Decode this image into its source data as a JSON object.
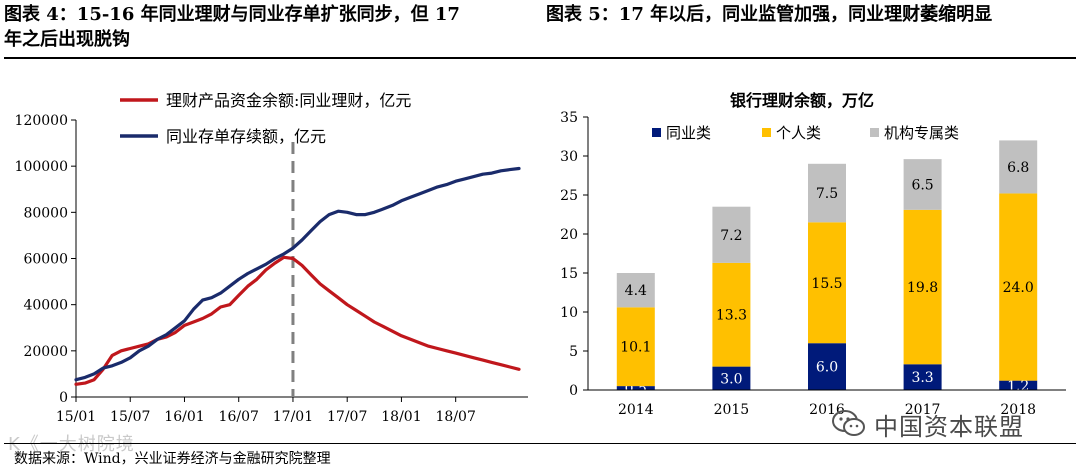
{
  "header": {
    "title_left": "图表 4：15-16 年同业理财与同业存单扩张同步，但 17",
    "title_right": "图表 5：17 年以后，同业监管加强，同业理财萎缩明显",
    "title_line2": "年之后出现脱钩"
  },
  "footer": {
    "source": "数据来源：Wind，兴业证券经济与金融研究院整理",
    "watermark_left": "K《一大树院境",
    "watermark_right": "中国资本联盟",
    "watermark_icon": "wechat-icon"
  },
  "colors": {
    "red": "#c0171c",
    "navy": "#1a2b6b",
    "bar_navy": "#001a7a",
    "bar_yellow": "#ffc000",
    "bar_gray": "#c0c0c0",
    "dashed": "#808080"
  },
  "chart_data": [
    {
      "type": "line",
      "title": "",
      "xlabel": "",
      "ylabel": "",
      "ylim": [
        0,
        120000
      ],
      "yticks": [
        "0",
        "20000",
        "40000",
        "60000",
        "80000",
        "100000",
        "120000"
      ],
      "xticks": [
        "15/01",
        "15/07",
        "16/01",
        "16/07",
        "17/01",
        "17/07",
        "18/01",
        "18/07"
      ],
      "xtick_months": [
        0,
        6,
        12,
        18,
        24,
        30,
        36,
        42
      ],
      "x_range_months": [
        0,
        50
      ],
      "marker_line_month": 24,
      "legend_position": "top-left",
      "series": [
        {
          "name": "理财产品资金余额:同业理财，亿元",
          "color": "#c0171c",
          "points": [
            [
              0,
              5500
            ],
            [
              1,
              6000
            ],
            [
              2,
              7500
            ],
            [
              3,
              12000
            ],
            [
              4,
              18000
            ],
            [
              5,
              20000
            ],
            [
              6,
              21000
            ],
            [
              7,
              22000
            ],
            [
              8,
              23000
            ],
            [
              9,
              25000
            ],
            [
              10,
              26000
            ],
            [
              11,
              28000
            ],
            [
              12,
              31000
            ],
            [
              13,
              32500
            ],
            [
              14,
              34000
            ],
            [
              15,
              36000
            ],
            [
              16,
              39000
            ],
            [
              17,
              40000
            ],
            [
              18,
              44000
            ],
            [
              19,
              48000
            ],
            [
              20,
              51000
            ],
            [
              21,
              55000
            ],
            [
              22,
              58000
            ],
            [
              23,
              60500
            ],
            [
              24,
              60000
            ],
            [
              25,
              57000
            ],
            [
              26,
              53000
            ],
            [
              27,
              49000
            ],
            [
              28,
              46000
            ],
            [
              29,
              43000
            ],
            [
              30,
              40000
            ],
            [
              31,
              37500
            ],
            [
              32,
              35000
            ],
            [
              33,
              32500
            ],
            [
              34,
              30500
            ],
            [
              35,
              28500
            ],
            [
              36,
              26500
            ],
            [
              37,
              25000
            ],
            [
              38,
              23500
            ],
            [
              39,
              22000
            ],
            [
              40,
              21000
            ],
            [
              41,
              20000
            ],
            [
              42,
              19000
            ],
            [
              43,
              18000
            ],
            [
              44,
              17000
            ],
            [
              45,
              16000
            ],
            [
              46,
              15000
            ],
            [
              47,
              14000
            ],
            [
              48,
              13000
            ],
            [
              49,
              12000
            ]
          ]
        },
        {
          "name": "同业存单存续额，亿元",
          "color": "#1a2b6b",
          "points": [
            [
              0,
              7500
            ],
            [
              1,
              8500
            ],
            [
              2,
              10000
            ],
            [
              3,
              12500
            ],
            [
              4,
              13500
            ],
            [
              5,
              15000
            ],
            [
              6,
              17000
            ],
            [
              7,
              20000
            ],
            [
              8,
              22000
            ],
            [
              9,
              25000
            ],
            [
              10,
              27000
            ],
            [
              11,
              30000
            ],
            [
              12,
              33000
            ],
            [
              13,
              38000
            ],
            [
              14,
              42000
            ],
            [
              15,
              43000
            ],
            [
              16,
              45000
            ],
            [
              17,
              48000
            ],
            [
              18,
              51000
            ],
            [
              19,
              53500
            ],
            [
              20,
              55500
            ],
            [
              21,
              57500
            ],
            [
              22,
              60000
            ],
            [
              23,
              62000
            ],
            [
              24,
              64500
            ],
            [
              25,
              68000
            ],
            [
              26,
              72000
            ],
            [
              27,
              76000
            ],
            [
              28,
              79000
            ],
            [
              29,
              80500
            ],
            [
              30,
              80000
            ],
            [
              31,
              79000
            ],
            [
              32,
              79000
            ],
            [
              33,
              80000
            ],
            [
              34,
              81500
            ],
            [
              35,
              83000
            ],
            [
              36,
              85000
            ],
            [
              37,
              86500
            ],
            [
              38,
              88000
            ],
            [
              39,
              89500
            ],
            [
              40,
              91000
            ],
            [
              41,
              92000
            ],
            [
              42,
              93500
            ],
            [
              43,
              94500
            ],
            [
              44,
              95500
            ],
            [
              45,
              96500
            ],
            [
              46,
              97000
            ],
            [
              47,
              98000
            ],
            [
              48,
              98500
            ],
            [
              49,
              99000
            ]
          ]
        }
      ]
    },
    {
      "type": "bar",
      "stacked": true,
      "title": "银行理财余额，万亿",
      "xlabel": "",
      "ylabel": "",
      "ylim": [
        0,
        35
      ],
      "yticks": [
        "0",
        "5",
        "10",
        "15",
        "20",
        "25",
        "30",
        "35"
      ],
      "categories": [
        "2014",
        "2015",
        "2016",
        "2017",
        "2018"
      ],
      "legend_position": "top",
      "series": [
        {
          "name": "同业类",
          "color": "#001a7a",
          "values": [
            0.5,
            3.0,
            6.0,
            3.3,
            1.2
          ],
          "labels": [
            "0.5",
            "3.0",
            "6.0",
            "3.3",
            "1.2"
          ],
          "label_color": "#ffffff"
        },
        {
          "name": "个人类",
          "color": "#ffc000",
          "values": [
            10.1,
            13.3,
            15.5,
            19.8,
            24.0
          ],
          "labels": [
            "10.1",
            "13.3",
            "15.5",
            "19.8",
            "24.0"
          ],
          "label_color": "#000000"
        },
        {
          "name": "机构专属类",
          "color": "#c0c0c0",
          "values": [
            4.4,
            7.2,
            7.5,
            6.5,
            6.8
          ],
          "labels": [
            "4.4",
            "7.2",
            "7.5",
            "6.5",
            "6.8"
          ],
          "label_color": "#000000"
        }
      ]
    }
  ]
}
